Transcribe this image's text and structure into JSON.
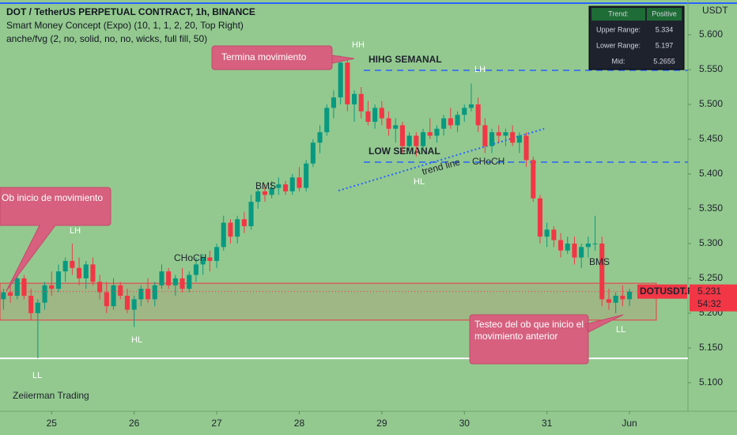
{
  "chart_data": {
    "type": "candlestick",
    "title": "DOT / TetherUS PERPETUAL CONTRACT, 1h, BINANCE",
    "indicators": [
      "Smart Money Concept (Expo) (10, 1, 1, 2, 20, Top Right)",
      "anche/fvg (2, no, solid, no, no, wicks, full fill, 50)"
    ],
    "currency": "USDT",
    "watermark": "Zeiierman Trading",
    "symbol": "DOTUSDT.P",
    "last_price": {
      "value": 5.231,
      "label": "5.231"
    },
    "countdown": "54:32",
    "up_color": "#089981",
    "down_color": "#f23645",
    "ylim": [
      5.059,
      5.65
    ],
    "xlim": [
      -0.5,
      99.5
    ],
    "yticks": [
      {
        "value": 5.1,
        "label": "5.100"
      },
      {
        "value": 5.15,
        "label": "5.150"
      },
      {
        "value": 5.2,
        "label": "5.200"
      },
      {
        "value": 5.25,
        "label": "5.250"
      },
      {
        "value": 5.3,
        "label": "5.300"
      },
      {
        "value": 5.35,
        "label": "5.350"
      },
      {
        "value": 5.4,
        "label": "5.400"
      },
      {
        "value": 5.45,
        "label": "5.450"
      },
      {
        "value": 5.5,
        "label": "5.500"
      },
      {
        "value": 5.55,
        "label": "5.550"
      },
      {
        "value": 5.6,
        "label": "5.600"
      }
    ],
    "xticks": [
      {
        "value": 7,
        "label": "25"
      },
      {
        "value": 19,
        "label": "26"
      },
      {
        "value": 31,
        "label": "27"
      },
      {
        "value": 43,
        "label": "28"
      },
      {
        "value": 55,
        "label": "29"
      },
      {
        "value": 67,
        "label": "30"
      },
      {
        "value": 79,
        "label": "31"
      },
      {
        "value": 91,
        "label": "Jun"
      }
    ],
    "candles": [
      [
        5.22,
        5.235,
        5.205,
        5.23
      ],
      [
        5.23,
        5.245,
        5.215,
        5.225
      ],
      [
        5.225,
        5.26,
        5.22,
        5.25
      ],
      [
        5.25,
        5.255,
        5.22,
        5.225
      ],
      [
        5.225,
        5.235,
        5.19,
        5.2
      ],
      [
        5.2,
        5.22,
        5.135,
        5.215
      ],
      [
        5.215,
        5.245,
        5.205,
        5.24
      ],
      [
        5.24,
        5.26,
        5.225,
        5.235
      ],
      [
        5.235,
        5.27,
        5.23,
        5.26
      ],
      [
        5.26,
        5.28,
        5.245,
        5.275
      ],
      [
        5.275,
        5.3,
        5.255,
        5.265
      ],
      [
        5.265,
        5.28,
        5.24,
        5.25
      ],
      [
        5.25,
        5.275,
        5.235,
        5.27
      ],
      [
        5.27,
        5.28,
        5.24,
        5.245
      ],
      [
        5.245,
        5.255,
        5.22,
        5.23
      ],
      [
        5.23,
        5.245,
        5.2,
        5.21
      ],
      [
        5.21,
        5.25,
        5.205,
        5.24
      ],
      [
        5.24,
        5.245,
        5.22,
        5.225
      ],
      [
        5.225,
        5.235,
        5.2,
        5.205
      ],
      [
        5.205,
        5.225,
        5.18,
        5.22
      ],
      [
        5.22,
        5.24,
        5.21,
        5.235
      ],
      [
        5.235,
        5.25,
        5.215,
        5.22
      ],
      [
        5.22,
        5.245,
        5.21,
        5.24
      ],
      [
        5.24,
        5.27,
        5.235,
        5.26
      ],
      [
        5.26,
        5.265,
        5.235,
        5.24
      ],
      [
        5.24,
        5.255,
        5.225,
        5.25
      ],
      [
        5.25,
        5.265,
        5.23,
        5.235
      ],
      [
        5.235,
        5.26,
        5.23,
        5.255
      ],
      [
        5.255,
        5.28,
        5.245,
        5.27
      ],
      [
        5.27,
        5.285,
        5.255,
        5.28
      ],
      [
        5.28,
        5.29,
        5.26,
        5.275
      ],
      [
        5.275,
        5.3,
        5.265,
        5.295
      ],
      [
        5.295,
        5.34,
        5.29,
        5.33
      ],
      [
        5.33,
        5.335,
        5.3,
        5.31
      ],
      [
        5.31,
        5.34,
        5.3,
        5.335
      ],
      [
        5.335,
        5.345,
        5.315,
        5.325
      ],
      [
        5.325,
        5.37,
        5.32,
        5.36
      ],
      [
        5.36,
        5.38,
        5.35,
        5.375
      ],
      [
        5.375,
        5.385,
        5.36,
        5.37
      ],
      [
        5.37,
        5.39,
        5.365,
        5.38
      ],
      [
        5.38,
        5.395,
        5.37,
        5.385
      ],
      [
        5.385,
        5.39,
        5.37,
        5.375
      ],
      [
        5.375,
        5.4,
        5.37,
        5.395
      ],
      [
        5.395,
        5.41,
        5.375,
        5.38
      ],
      [
        5.38,
        5.42,
        5.375,
        5.415
      ],
      [
        5.415,
        5.45,
        5.41,
        5.445
      ],
      [
        5.445,
        5.47,
        5.43,
        5.46
      ],
      [
        5.46,
        5.5,
        5.455,
        5.495
      ],
      [
        5.495,
        5.52,
        5.48,
        5.51
      ],
      [
        5.51,
        5.57,
        5.5,
        5.56
      ],
      [
        5.56,
        5.565,
        5.49,
        5.5
      ],
      [
        5.5,
        5.52,
        5.475,
        5.515
      ],
      [
        5.515,
        5.525,
        5.48,
        5.49
      ],
      [
        5.49,
        5.505,
        5.47,
        5.475
      ],
      [
        5.475,
        5.5,
        5.465,
        5.495
      ],
      [
        5.495,
        5.505,
        5.47,
        5.48
      ],
      [
        5.48,
        5.49,
        5.455,
        5.465
      ],
      [
        5.465,
        5.48,
        5.445,
        5.47
      ],
      [
        5.47,
        5.475,
        5.43,
        5.44
      ],
      [
        5.44,
        5.46,
        5.43,
        5.455
      ],
      [
        5.455,
        5.46,
        5.425,
        5.44
      ],
      [
        5.44,
        5.465,
        5.435,
        5.46
      ],
      [
        5.46,
        5.48,
        5.45,
        5.455
      ],
      [
        5.455,
        5.47,
        5.445,
        5.465
      ],
      [
        5.465,
        5.485,
        5.455,
        5.48
      ],
      [
        5.48,
        5.495,
        5.465,
        5.47
      ],
      [
        5.47,
        5.49,
        5.46,
        5.485
      ],
      [
        5.485,
        5.5,
        5.475,
        5.495
      ],
      [
        5.495,
        5.53,
        5.49,
        5.5
      ],
      [
        5.5,
        5.51,
        5.46,
        5.47
      ],
      [
        5.47,
        5.48,
        5.43,
        5.44
      ],
      [
        5.44,
        5.465,
        5.43,
        5.46
      ],
      [
        5.46,
        5.47,
        5.445,
        5.455
      ],
      [
        5.455,
        5.465,
        5.44,
        5.46
      ],
      [
        5.46,
        5.47,
        5.44,
        5.445
      ],
      [
        5.445,
        5.46,
        5.43,
        5.455
      ],
      [
        5.455,
        5.46,
        5.41,
        5.42
      ],
      [
        5.42,
        5.425,
        5.36,
        5.365
      ],
      [
        5.365,
        5.37,
        5.3,
        5.31
      ],
      [
        5.31,
        5.33,
        5.295,
        5.32
      ],
      [
        5.32,
        5.325,
        5.295,
        5.305
      ],
      [
        5.305,
        5.315,
        5.28,
        5.29
      ],
      [
        5.29,
        5.31,
        5.285,
        5.3
      ],
      [
        5.3,
        5.31,
        5.27,
        5.28
      ],
      [
        5.28,
        5.3,
        5.265,
        5.295
      ],
      [
        5.295,
        5.31,
        5.28,
        5.3
      ],
      [
        5.3,
        5.34,
        5.29,
        5.3
      ],
      [
        5.3,
        5.31,
        5.21,
        5.22
      ],
      [
        5.22,
        5.235,
        5.205,
        5.215
      ],
      [
        5.215,
        5.23,
        5.2,
        5.225
      ],
      [
        5.225,
        5.24,
        5.21,
        5.22
      ],
      [
        5.22,
        5.235,
        5.21,
        5.231
      ]
    ],
    "levels": [
      {
        "label": "HIHG SEMANAL",
        "value": 5.549,
        "color": "#2962ff"
      },
      {
        "label": "LOW SEMANAL",
        "value": 5.417,
        "color": "#2962ff"
      }
    ],
    "support_line": {
      "value": 5.135,
      "color": "#ffffff"
    },
    "order_block": {
      "low": 5.19,
      "high": 5.243,
      "color": "#f23645"
    },
    "trend_line": {
      "label": "trend line",
      "points": [
        [
          48.7,
          5.376
        ],
        [
          78.6,
          5.465
        ]
      ],
      "color": "#2962ff"
    },
    "callouts": [
      "Termina movimiento",
      "Ob inicio de movimiento",
      "Testeo del ob que inicio el movimiento anterior"
    ],
    "labels": [
      "HH",
      "LH",
      "HL",
      "LL",
      "LH",
      "HL",
      "LL",
      "CHoCH",
      "BMS",
      "BMS",
      "CHoCH"
    ],
    "table": [
      [
        "Trend:",
        "Positive"
      ],
      [
        "Upper Range:",
        5.334
      ],
      [
        "Lower Range:",
        5.197
      ],
      [
        "Mid:",
        5.2655
      ]
    ]
  }
}
